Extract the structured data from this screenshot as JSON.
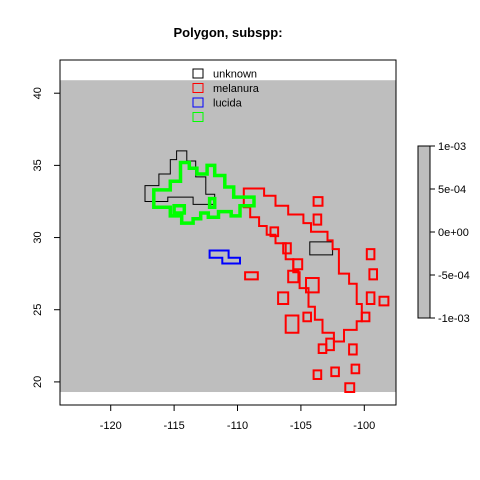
{
  "chart_data": {
    "type": "map",
    "title": "Polygon, subspp:",
    "xlabel": "",
    "ylabel": "",
    "xlim": [
      -124,
      -97.5
    ],
    "ylim": [
      18.4,
      42.3
    ],
    "x_ticks": [
      -120,
      -115,
      -110,
      -105,
      -100
    ],
    "y_ticks": [
      20,
      25,
      30,
      35,
      40
    ],
    "raster_extent": {
      "x": [
        -124,
        -97.5
      ],
      "y": [
        19.3,
        40.9
      ]
    },
    "raster_color": "#bebebe",
    "grid": false,
    "legend": {
      "position": "top-center",
      "entries": [
        {
          "name": "unknown",
          "color": "#000000"
        },
        {
          "name": "melanura",
          "color": "#ff0000"
        },
        {
          "name": "lucida",
          "color": "#0000ff"
        },
        {
          "name": "",
          "color": "#00ff00"
        }
      ]
    },
    "colorbar": {
      "ticks": [
        "1e-03",
        "5e-04",
        "0e+00",
        "-5e-04",
        "-1e-03"
      ],
      "values": [
        0.001,
        0.0005,
        0,
        -0.0005,
        -0.001
      ],
      "color": "#bebebe"
    },
    "series": [
      {
        "name": "unknown",
        "color": "#000000",
        "line_width": 1,
        "polygons": [
          [
            [
              -117.3,
              33.6
            ],
            [
              -116.2,
              33.6
            ],
            [
              -116.2,
              34.4
            ],
            [
              -115.3,
              34.4
            ],
            [
              -115.3,
              35.4
            ],
            [
              -114.8,
              35.4
            ],
            [
              -114.8,
              36
            ],
            [
              -114,
              36
            ],
            [
              -114,
              35.3
            ],
            [
              -113.3,
              35.3
            ],
            [
              -113.3,
              34.2
            ],
            [
              -112.5,
              34.2
            ],
            [
              -112.5,
              33
            ],
            [
              -111.8,
              33
            ],
            [
              -111.8,
              32.3
            ],
            [
              -113.5,
              32.3
            ],
            [
              -113.5,
              32.8
            ],
            [
              -115.5,
              32.8
            ],
            [
              -115.5,
              32.5
            ],
            [
              -117.3,
              32.5
            ]
          ],
          [
            [
              -104.3,
              29.7
            ],
            [
              -102.5,
              29.7
            ],
            [
              -102.5,
              28.8
            ],
            [
              -104.3,
              28.8
            ]
          ]
        ]
      },
      {
        "name": "melanura",
        "color": "#ff0000",
        "line_width": 2,
        "polygons": [
          [
            [
              -109.5,
              33.4
            ],
            [
              -107.9,
              33.4
            ],
            [
              -107.9,
              32.9
            ],
            [
              -107,
              32.9
            ],
            [
              -107,
              32.2
            ],
            [
              -106,
              32.2
            ],
            [
              -106,
              31.6
            ],
            [
              -104.8,
              31.6
            ],
            [
              -104.8,
              31
            ],
            [
              -104.2,
              31
            ],
            [
              -104.2,
              30.4
            ],
            [
              -102.9,
              30.4
            ],
            [
              -102.9,
              29.8
            ],
            [
              -102.5,
              29.8
            ],
            [
              -102.5,
              29.2
            ],
            [
              -102,
              29.2
            ],
            [
              -102,
              27.5
            ],
            [
              -101.2,
              27.5
            ],
            [
              -101.2,
              26.8
            ],
            [
              -100.6,
              26.8
            ],
            [
              -100.6,
              25.4
            ],
            [
              -100.2,
              25.4
            ],
            [
              -100.2,
              24.2
            ],
            [
              -100.6,
              24.2
            ],
            [
              -100.6,
              23.6
            ],
            [
              -101.6,
              23.6
            ],
            [
              -101.6,
              22.8
            ],
            [
              -102.4,
              22.8
            ],
            [
              -102.4,
              23.4
            ],
            [
              -103.3,
              23.4
            ],
            [
              -103.3,
              24.3
            ],
            [
              -103.9,
              24.3
            ],
            [
              -103.9,
              25.2
            ],
            [
              -104.4,
              25.2
            ],
            [
              -104.4,
              26.5
            ],
            [
              -105.1,
              26.5
            ],
            [
              -105.1,
              27.6
            ],
            [
              -105.6,
              27.6
            ],
            [
              -105.6,
              28.5
            ],
            [
              -106.2,
              28.5
            ],
            [
              -106.2,
              29.6
            ],
            [
              -107,
              29.6
            ],
            [
              -107,
              30.2
            ],
            [
              -107.7,
              30.2
            ],
            [
              -107.7,
              30.8
            ],
            [
              -108.3,
              30.8
            ],
            [
              -108.3,
              31.4
            ],
            [
              -109,
              31.4
            ],
            [
              -109,
              32.1
            ],
            [
              -109.5,
              32.1
            ]
          ],
          [
            [
              -106,
              27.7
            ],
            [
              -105.2,
              27.7
            ],
            [
              -105.2,
              26.9
            ],
            [
              -106,
              26.9
            ]
          ],
          [
            [
              -106.8,
              26.2
            ],
            [
              -106,
              26.2
            ],
            [
              -106,
              25.4
            ],
            [
              -106.8,
              25.4
            ]
          ],
          [
            [
              -106.2,
              24.6
            ],
            [
              -105.2,
              24.6
            ],
            [
              -105.2,
              23.4
            ],
            [
              -106.2,
              23.4
            ]
          ],
          [
            [
              -104.6,
              27.2
            ],
            [
              -103.6,
              27.2
            ],
            [
              -103.6,
              26.2
            ],
            [
              -104.6,
              26.2
            ]
          ],
          [
            [
              -103,
              23
            ],
            [
              -102.4,
              23
            ],
            [
              -102.4,
              22.2
            ],
            [
              -103,
              22.2
            ]
          ],
          [
            [
              -104,
              20.8
            ],
            [
              -103.4,
              20.8
            ],
            [
              -103.4,
              20.2
            ],
            [
              -104,
              20.2
            ]
          ],
          [
            [
              -101,
              21.2
            ],
            [
              -100.4,
              21.2
            ],
            [
              -100.4,
              20.6
            ],
            [
              -101,
              20.6
            ]
          ],
          [
            [
              -101.5,
              19.9
            ],
            [
              -100.8,
              19.9
            ],
            [
              -100.8,
              19.3
            ],
            [
              -101.5,
              19.3
            ]
          ],
          [
            [
              -102.6,
              21
            ],
            [
              -102,
              21
            ],
            [
              -102,
              20.4
            ],
            [
              -102.6,
              20.4
            ]
          ],
          [
            [
              -99.8,
              26.2
            ],
            [
              -99.2,
              26.2
            ],
            [
              -99.2,
              25.4
            ],
            [
              -99.8,
              25.4
            ]
          ],
          [
            [
              -98.8,
              25.9
            ],
            [
              -98.1,
              25.9
            ],
            [
              -98.1,
              25.3
            ],
            [
              -98.8,
              25.3
            ]
          ],
          [
            [
              -99.6,
              27.8
            ],
            [
              -99,
              27.8
            ],
            [
              -99,
              27.1
            ],
            [
              -99.6,
              27.1
            ]
          ],
          [
            [
              -99.8,
              29.2
            ],
            [
              -99.2,
              29.2
            ],
            [
              -99.2,
              28.5
            ],
            [
              -99.8,
              28.5
            ]
          ],
          [
            [
              -100.2,
              24.8
            ],
            [
              -99.6,
              24.8
            ],
            [
              -99.6,
              24.2
            ],
            [
              -100.2,
              24.2
            ]
          ],
          [
            [
              -109.4,
              27.6
            ],
            [
              -108.4,
              27.6
            ],
            [
              -108.4,
              27.1
            ],
            [
              -109.4,
              27.1
            ]
          ],
          [
            [
              -107.4,
              30.7
            ],
            [
              -106.8,
              30.7
            ],
            [
              -106.8,
              30.1
            ],
            [
              -107.4,
              30.1
            ]
          ],
          [
            [
              -104,
              32.8
            ],
            [
              -103.3,
              32.8
            ],
            [
              -103.3,
              32.2
            ],
            [
              -104,
              32.2
            ]
          ],
          [
            [
              -104,
              31.6
            ],
            [
              -103.4,
              31.6
            ],
            [
              -103.4,
              30.9
            ],
            [
              -104,
              30.9
            ]
          ],
          [
            [
              -105.6,
              28.5
            ],
            [
              -104.9,
              28.5
            ],
            [
              -104.9,
              27.8
            ],
            [
              -105.6,
              27.8
            ]
          ],
          [
            [
              -106.4,
              29.6
            ],
            [
              -105.8,
              29.6
            ],
            [
              -105.8,
              28.9
            ],
            [
              -106.4,
              28.9
            ]
          ],
          [
            [
              -103.6,
              22.6
            ],
            [
              -103,
              22.6
            ],
            [
              -103,
              22
            ],
            [
              -103.6,
              22
            ]
          ],
          [
            [
              -104.8,
              24.8
            ],
            [
              -104.2,
              24.8
            ],
            [
              -104.2,
              24.2
            ],
            [
              -104.8,
              24.2
            ]
          ],
          [
            [
              -101.2,
              22.6
            ],
            [
              -100.6,
              22.6
            ],
            [
              -100.6,
              21.9
            ],
            [
              -101.2,
              21.9
            ]
          ]
        ]
      },
      {
        "name": "lucida",
        "color": "#0000ff",
        "line_width": 2,
        "polygons": [
          [
            [
              -112.2,
              29.1
            ],
            [
              -110.7,
              29.1
            ],
            [
              -110.7,
              28.6
            ],
            [
              -109.8,
              28.6
            ],
            [
              -109.8,
              28.2
            ],
            [
              -111.2,
              28.2
            ],
            [
              -111.2,
              28.6
            ],
            [
              -112.2,
              28.6
            ]
          ]
        ]
      },
      {
        "name": "",
        "color": "#00ff00",
        "line_width": 3.5,
        "polygons": [
          [
            [
              -116.6,
              33.3
            ],
            [
              -115.3,
              33.3
            ],
            [
              -115.3,
              33.9
            ],
            [
              -114.5,
              33.9
            ],
            [
              -114.5,
              35.2
            ],
            [
              -113.8,
              35.2
            ],
            [
              -113.8,
              34.8
            ],
            [
              -113.2,
              34.8
            ],
            [
              -113.2,
              34.4
            ],
            [
              -112.4,
              34.4
            ],
            [
              -112.4,
              35
            ],
            [
              -111.8,
              35
            ],
            [
              -111.8,
              34.3
            ],
            [
              -111,
              34.3
            ],
            [
              -111,
              33.5
            ],
            [
              -110.3,
              33.5
            ],
            [
              -110.3,
              32.8
            ],
            [
              -108.7,
              32.8
            ],
            [
              -108.7,
              32.2
            ],
            [
              -109.8,
              32.2
            ],
            [
              -109.8,
              31.5
            ],
            [
              -110.5,
              31.5
            ],
            [
              -110.5,
              31.8
            ],
            [
              -111.5,
              31.8
            ],
            [
              -111.5,
              31.4
            ],
            [
              -112.3,
              31.4
            ],
            [
              -112.3,
              31.7
            ],
            [
              -112.9,
              31.7
            ],
            [
              -112.9,
              31.3
            ],
            [
              -113.5,
              31.3
            ],
            [
              -113.5,
              31
            ],
            [
              -114.4,
              31
            ],
            [
              -114.4,
              31.5
            ],
            [
              -115.3,
              31.5
            ],
            [
              -115.3,
              32.1
            ],
            [
              -116.6,
              32.1
            ]
          ],
          [
            [
              -115,
              32.2
            ],
            [
              -114.2,
              32.2
            ],
            [
              -114.2,
              31.7
            ],
            [
              -115,
              31.7
            ]
          ],
          [
            [
              -112.2,
              32.7
            ],
            [
              -111.8,
              32.7
            ],
            [
              -111.8,
              32.1
            ],
            [
              -112.2,
              32.1
            ]
          ]
        ]
      }
    ]
  }
}
